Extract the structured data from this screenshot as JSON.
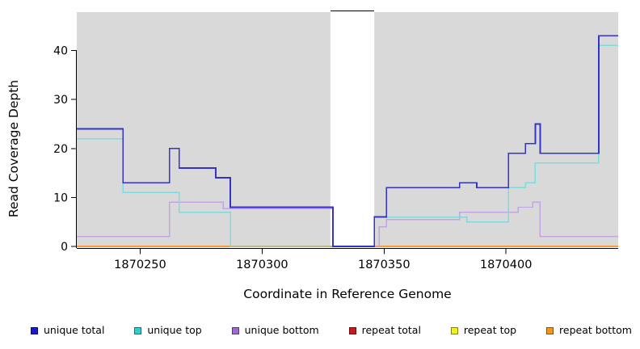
{
  "chart_data": {
    "type": "line",
    "subtype": "step-coverage",
    "title": "",
    "xlabel": "Coordinate in Reference Genome",
    "ylabel": "Read Coverage Depth",
    "xlim": [
      1870224,
      1870446
    ],
    "ylim": [
      0,
      48
    ],
    "xticks": [
      1870250,
      1870300,
      1870350,
      1870400
    ],
    "yticks": [
      0,
      10,
      20,
      30,
      40
    ],
    "grid": false,
    "plot_bg": "#d9d9d9",
    "gap_region": [
      1870328,
      1870346
    ],
    "series": [
      {
        "name": "repeat total",
        "color": "#cc2222",
        "width": 1.4,
        "steps": [
          [
            1870224,
            0
          ],
          [
            1870446,
            0
          ]
        ]
      },
      {
        "name": "repeat top",
        "color": "#eded24",
        "width": 1.4,
        "steps": [
          [
            1870224,
            0
          ],
          [
            1870446,
            0
          ]
        ]
      },
      {
        "name": "repeat bottom",
        "color": "#ff9933",
        "width": 1.8,
        "steps": [
          [
            1870224,
            0
          ],
          [
            1870446,
            0
          ]
        ]
      },
      {
        "name": "unique bottom",
        "color": "#c2a5e0",
        "width": 1.4,
        "steps": [
          [
            1870224,
            2
          ],
          [
            1870262,
            9
          ],
          [
            1870284,
            7.7
          ],
          [
            1870329,
            0
          ],
          [
            1870348,
            4
          ],
          [
            1870351,
            5.5
          ],
          [
            1870381,
            7
          ],
          [
            1870405,
            8
          ],
          [
            1870411,
            9
          ],
          [
            1870414,
            2
          ],
          [
            1870446,
            2
          ]
        ]
      },
      {
        "name": "unique top",
        "color": "#7fdbdb",
        "width": 1.4,
        "steps": [
          [
            1870224,
            22
          ],
          [
            1870243,
            11
          ],
          [
            1870266,
            7
          ],
          [
            1870287,
            0
          ],
          [
            1870346,
            6
          ],
          [
            1870384,
            5
          ],
          [
            1870401,
            12
          ],
          [
            1870408,
            13
          ],
          [
            1870412,
            17
          ],
          [
            1870438,
            41
          ],
          [
            1870446,
            41
          ]
        ]
      },
      {
        "name": "unique total",
        "color": "#3333cc",
        "width": 1.8,
        "steps": [
          [
            1870224,
            24
          ],
          [
            1870243,
            13
          ],
          [
            1870262,
            20
          ],
          [
            1870266,
            16
          ],
          [
            1870281,
            14
          ],
          [
            1870287,
            8
          ],
          [
            1870329,
            0
          ],
          [
            1870346,
            6
          ],
          [
            1870351,
            12
          ],
          [
            1870381,
            13
          ],
          [
            1870388,
            12
          ],
          [
            1870401,
            19
          ],
          [
            1870408,
            21
          ],
          [
            1870412,
            25
          ],
          [
            1870414,
            19
          ],
          [
            1870438,
            43
          ],
          [
            1870446,
            43
          ]
        ]
      }
    ],
    "legend": [
      {
        "label": "unique total",
        "color": "#1a1acc"
      },
      {
        "label": "unique top",
        "color": "#30cfcf"
      },
      {
        "label": "unique bottom",
        "color": "#9b6bd3"
      },
      {
        "label": "repeat total",
        "color": "#cc1a1a"
      },
      {
        "label": "repeat top",
        "color": "#f0f01a"
      },
      {
        "label": "repeat bottom",
        "color": "#f0981a"
      }
    ],
    "legend_position": "bottom"
  }
}
